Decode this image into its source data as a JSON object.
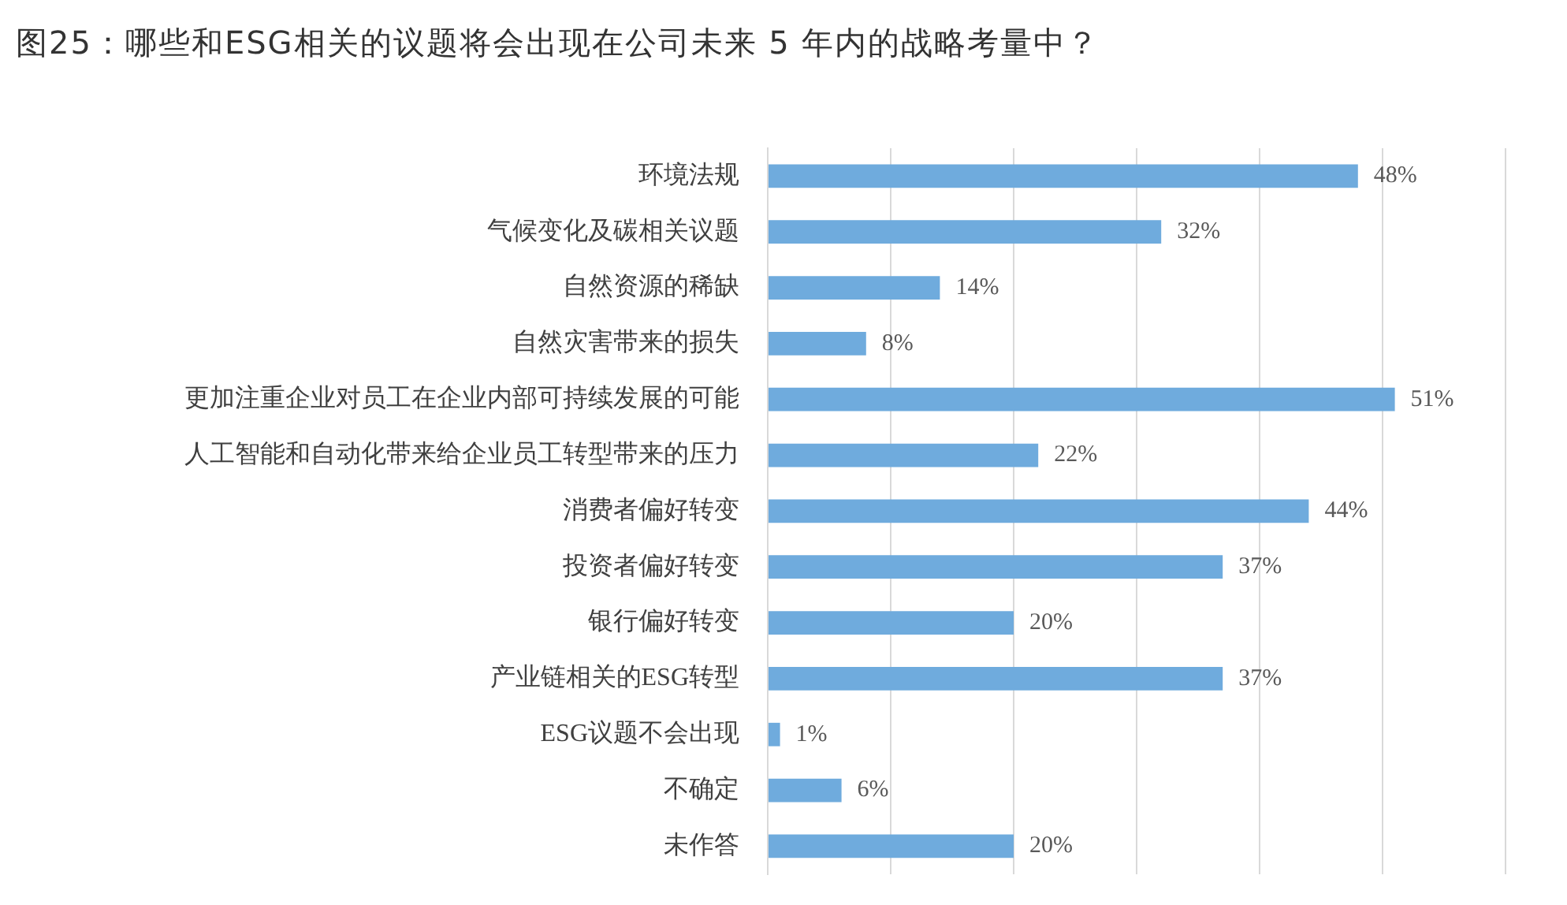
{
  "chart_data": {
    "type": "bar",
    "orientation": "horizontal",
    "title": "图25：哪些和ESG相关的议题将会出现在公司未来 5 年内的战略考量中？",
    "categories": [
      "环境法规",
      "气候变化及碳相关议题",
      "自然资源的稀缺",
      "自然灾害带来的损失",
      "更加注重企业对员工在企业内部可持续发展的可能",
      "人工智能和自动化带来给企业员工转型带来的压力",
      "消费者偏好转变",
      "投资者偏好转变",
      "银行偏好转变",
      "产业链相关的ESG转型",
      "ESG议题不会出现",
      "不确定",
      "未作答"
    ],
    "values": [
      48,
      32,
      14,
      8,
      51,
      22,
      44,
      37,
      20,
      37,
      1,
      6,
      20
    ],
    "value_labels": [
      "48%",
      "32%",
      "14%",
      "8%",
      "51%",
      "22%",
      "44%",
      "37%",
      "20%",
      "37%",
      "1%",
      "6%",
      "20%"
    ],
    "color": "#6fabdd",
    "xlim": [
      0,
      60
    ],
    "xticks": [
      {
        "value": 0,
        "label": null
      },
      {
        "value": 10,
        "label": null
      },
      {
        "value": 20,
        "label": null
      },
      {
        "value": 30,
        "label": null
      },
      {
        "value": 40,
        "label": null
      },
      {
        "value": 50,
        "label": null
      },
      {
        "value": 60,
        "label": null
      }
    ],
    "grid": "x",
    "tick_labels": "y"
  }
}
